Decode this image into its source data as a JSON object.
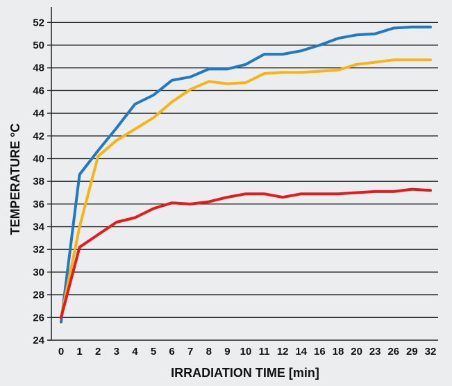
{
  "chart_data": {
    "type": "line",
    "title": "",
    "xlabel": "IRRADIATION TIME [min]",
    "ylabel": "TEMPERATURE °C",
    "categories": [
      "0",
      "1",
      "2",
      "3",
      "4",
      "5",
      "6",
      "7",
      "8",
      "9",
      "10",
      "11",
      "12",
      "14",
      "16",
      "18",
      "20",
      "23",
      "26",
      "29",
      "32"
    ],
    "ylim": [
      24,
      53
    ],
    "yticks": [
      24,
      26,
      28,
      30,
      32,
      34,
      36,
      38,
      40,
      42,
      44,
      46,
      48,
      50,
      52
    ],
    "grid": "horizontal",
    "legend": "none",
    "series": [
      {
        "color": "#1f7ac2",
        "values": [
          25.6,
          38.6,
          40.7,
          42.7,
          44.8,
          45.6,
          46.9,
          47.2,
          47.9,
          47.9,
          48.3,
          49.2,
          49.2,
          49.5,
          50.0,
          50.6,
          50.9,
          51.0,
          51.5,
          51.6,
          51.6
        ]
      },
      {
        "color": "#f7b515",
        "values": [
          26.0,
          34.0,
          40.2,
          41.6,
          42.6,
          43.6,
          45.0,
          46.1,
          46.8,
          46.6,
          46.7,
          47.5,
          47.6,
          47.6,
          47.7,
          47.8,
          48.3,
          48.5,
          48.7,
          48.7,
          48.7
        ]
      },
      {
        "color": "#e31b1b",
        "values": [
          26.0,
          32.2,
          33.3,
          34.4,
          34.8,
          35.6,
          36.1,
          36.0,
          36.2,
          36.6,
          36.9,
          36.9,
          36.6,
          36.9,
          36.9,
          36.9,
          37.0,
          37.1,
          37.1,
          37.3,
          37.2
        ]
      }
    ]
  }
}
